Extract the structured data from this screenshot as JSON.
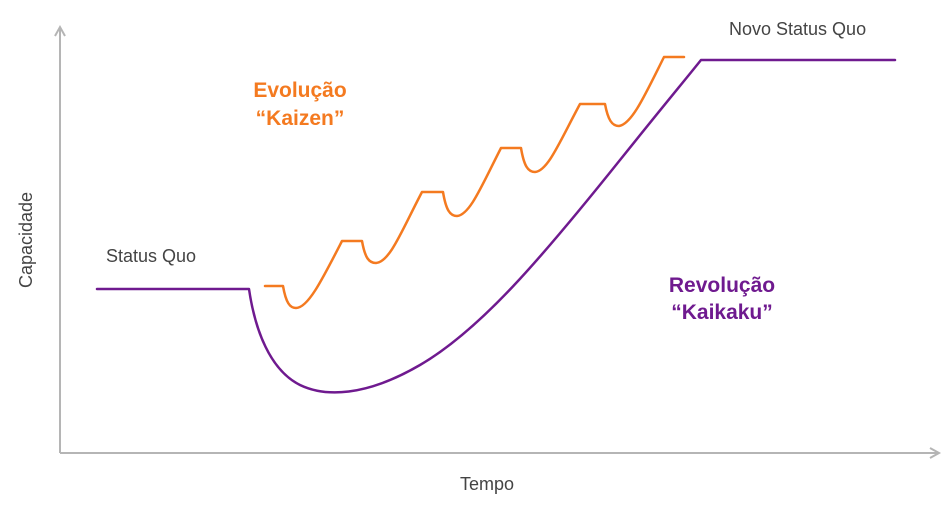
{
  "axes": {
    "x_label": "Tempo",
    "y_label": "Capacidade"
  },
  "labels": {
    "status_quo": "Status Quo",
    "novo_status_quo": "Novo Status Quo",
    "kaizen_line1": "Evolução",
    "kaizen_line2": "“Kaizen”",
    "kaikaku_line1": "Revolução",
    "kaikaku_line2": "“Kaikaku”"
  },
  "colors": {
    "kaizen": "#f47a20",
    "kaikaku": "#6f1a8f",
    "axis": "#b5b5b5",
    "text": "#444444"
  }
}
